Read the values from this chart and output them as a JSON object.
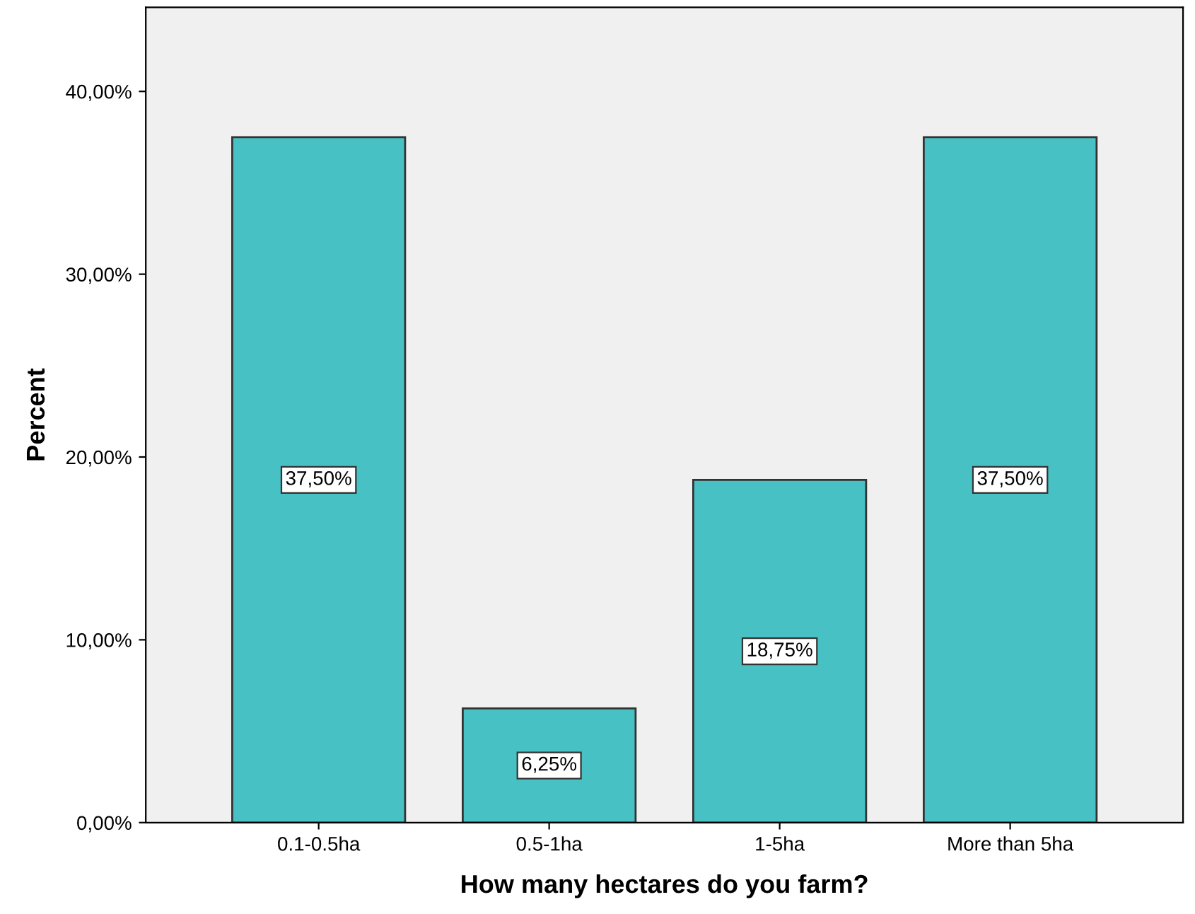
{
  "chart_data": {
    "type": "bar",
    "xlabel": "How many hectares do you farm?",
    "ylabel": "Percent",
    "categories": [
      "0.1-0.5ha",
      "0.5-1ha",
      "1-5ha",
      "More than 5ha"
    ],
    "values": [
      37.5,
      6.25,
      18.75,
      37.5
    ],
    "value_labels": [
      "37,50%",
      "6,25%",
      "18,75%",
      "37,50%"
    ],
    "color": "#48c1c4",
    "ylim": [
      0,
      44.6
    ],
    "yticks": [
      {
        "value": 0,
        "label": "0,00%"
      },
      {
        "value": 10,
        "label": "10,00%"
      },
      {
        "value": 20,
        "label": "20,00%"
      },
      {
        "value": 30,
        "label": "30,00%"
      },
      {
        "value": 40,
        "label": "40,00%"
      }
    ],
    "grid": false
  }
}
